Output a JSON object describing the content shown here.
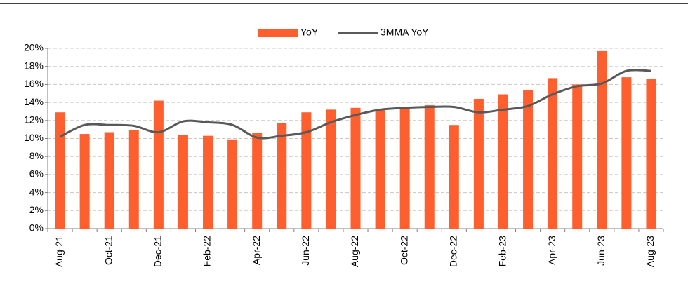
{
  "chart_data": {
    "type": "bar_line",
    "categories": [
      "Aug-21",
      null,
      "Oct-21",
      null,
      "Dec-21",
      null,
      "Feb-22",
      null,
      "Apr-22",
      null,
      "Jun-22",
      null,
      "Aug-22",
      null,
      "Oct-22",
      null,
      "Dec-22",
      null,
      "Feb-23",
      null,
      "Apr-23",
      null,
      "Jun-23",
      null,
      "Aug-23"
    ],
    "series": [
      {
        "name": "YoY",
        "type": "bar",
        "color": "#ff5f2e",
        "values": [
          12.9,
          10.5,
          10.7,
          10.9,
          14.2,
          10.4,
          10.3,
          9.9,
          10.6,
          11.7,
          12.9,
          13.2,
          13.4,
          13.3,
          13.5,
          13.7,
          11.5,
          14.4,
          14.9,
          15.4,
          16.7,
          16.0,
          19.7,
          16.8,
          16.6
        ]
      },
      {
        "name": "3MMA YoY",
        "type": "line",
        "color": "#595959",
        "values": [
          10.2,
          11.5,
          11.5,
          11.4,
          10.7,
          11.9,
          11.8,
          11.5,
          10.1,
          10.3,
          10.7,
          11.8,
          12.6,
          13.2,
          13.4,
          13.5,
          13.5,
          12.9,
          13.2,
          13.6,
          14.9,
          15.8,
          16.1,
          17.5,
          17.5
        ]
      }
    ],
    "ylim": [
      0,
      20
    ],
    "yticks": [
      {
        "value": 0,
        "label": "0%"
      },
      {
        "value": 2,
        "label": "2%"
      },
      {
        "value": 4,
        "label": "4%"
      },
      {
        "value": 6,
        "label": "6%"
      },
      {
        "value": 8,
        "label": "8%"
      },
      {
        "value": 10,
        "label": "10%"
      },
      {
        "value": 12,
        "label": "12%"
      },
      {
        "value": 14,
        "label": "14%"
      },
      {
        "value": 16,
        "label": "16%"
      },
      {
        "value": 18,
        "label": "18%"
      },
      {
        "value": 20,
        "label": "20%"
      }
    ],
    "grid": true,
    "legend": "top"
  }
}
